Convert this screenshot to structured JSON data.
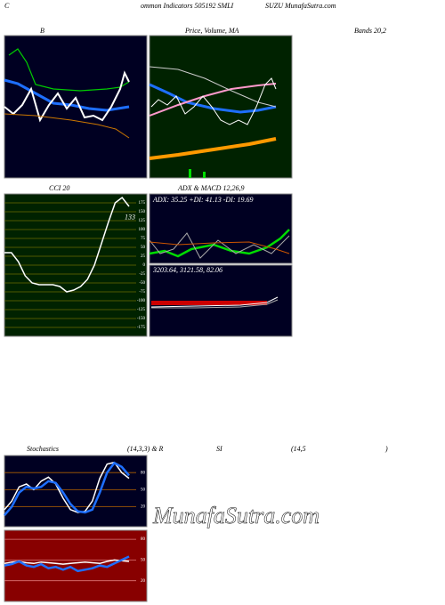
{
  "header": {
    "left": "C",
    "title": "ommon Indicators 505192 SMLI",
    "right": "SUZU MunafaSutra.com"
  },
  "panel_titles": {
    "b": "B",
    "price": "Price, Volume, MA",
    "bands": "Bands 20,2",
    "adx_macd": "ADX  & MACD 12,26,9",
    "stoch": "Stochastics",
    "stoch_params": "(14,3,3) & R",
    "rsi": "SI",
    "rsi_params": "(14,5",
    "rsi_close": ")"
  },
  "adx_text": "ADX: 35.25  +DI: 41.13  -DI: 19.69",
  "macd_text": "3203.64,  3121.58,  82.06",
  "watermark": "MunafaSutra.com",
  "chart_data": [
    {
      "type": "line",
      "title": "CCI 20",
      "ylim": [
        -200,
        200
      ],
      "yticks": [
        175,
        150,
        125,
        100,
        75,
        50,
        25,
        0,
        -25,
        -50,
        -75,
        -100,
        -125,
        -150,
        -175
      ],
      "grid": true,
      "grid_color": "#6b6b00",
      "background": "#002200",
      "annotation": 133,
      "series": [
        {
          "color": "#ffffff",
          "values": [
            35,
            35,
            10,
            -30,
            -50,
            -55,
            -55,
            -55,
            -60,
            -75,
            -70,
            -60,
            -40,
            0,
            60,
            120,
            175,
            190,
            165
          ]
        }
      ]
    },
    {
      "type": "line",
      "ylim": [
        -15,
        110
      ],
      "yticks": [
        80,
        50,
        20
      ],
      "grid": true,
      "grid_color": "#b06000",
      "background": "#000022",
      "series": [
        {
          "color": "#ffffff",
          "values": [
            15,
            30,
            55,
            60,
            50,
            65,
            72,
            60,
            35,
            15,
            10,
            12,
            30,
            70,
            95,
            98,
            80,
            70
          ]
        },
        {
          "color": "#1e6fff",
          "values": [
            5,
            20,
            45,
            55,
            52,
            55,
            65,
            62,
            45,
            25,
            12,
            10,
            15,
            45,
            80,
            97,
            90,
            75
          ]
        }
      ]
    },
    {
      "type": "line",
      "ylim": [
        -10,
        93
      ],
      "yticks": [
        80,
        50,
        20
      ],
      "grid": true,
      "grid_color": "#dd7777",
      "background": "#880000",
      "series": [
        {
          "color": "#ffffff",
          "values": [
            45,
            47,
            48,
            46,
            45,
            47,
            46,
            45,
            44,
            45,
            46,
            47,
            46,
            45,
            48,
            50,
            49,
            48
          ]
        },
        {
          "color": "#1e6fff",
          "values": [
            42,
            44,
            48,
            42,
            40,
            44,
            38,
            40,
            36,
            40,
            34,
            36,
            38,
            42,
            40,
            45,
            50,
            55
          ]
        }
      ]
    }
  ]
}
